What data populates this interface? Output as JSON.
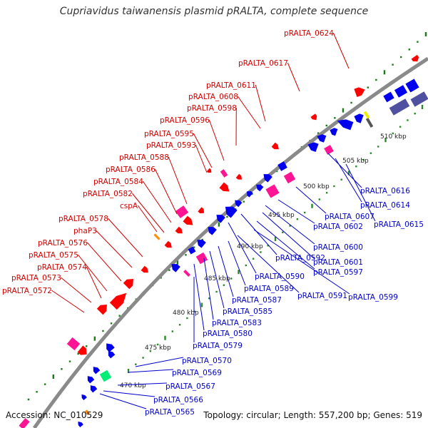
{
  "title": "Cupriavidus taiwanensis plasmid pRALTA, complete sequence",
  "footer": {
    "accession": "Accession: NC_010529",
    "topology": "Topology: circular; Length: 557,200 bp; Genes: 519"
  },
  "colors": {
    "backbone": "#8a8a8a",
    "dots": "#1a7a1a",
    "dots_minor": "#2a8a2a",
    "label_red": "#d00000",
    "label_blue": "#0000cc",
    "gene_red": "#ff0000",
    "gene_blue": "#0000ee",
    "gene_pink": "#ff1493",
    "gene_orange": "#ff8c00",
    "gene_green": "#00ee76",
    "gene_slate": "#5050a0",
    "gene_grey": "#555555"
  },
  "tick_labels": [
    "470 kbp",
    "475 kbp",
    "480 kbp",
    "485 kbp",
    "490 kbp",
    "495 kbp",
    "500 kbp",
    "505 kbp",
    "510 kbp"
  ],
  "red_labels": [
    "pRALTA_0624",
    "pRALTA_0617",
    "pRALTA_0611",
    "pRALTA_0608",
    "pRALTA_0598",
    "pRALTA_0596",
    "pRALTA_0595",
    "pRALTA_0593",
    "pRALTA_0588",
    "pRALTA_0586",
    "pRALTA_0584",
    "pRALTA_0582",
    "cspA",
    "pRALTA_0578",
    "phaP3",
    "pRALTA_0576",
    "pRALTA_0575",
    "pRALTA_0574",
    "pRALTA_0573",
    "pRALTA_0572"
  ],
  "blue_labels": [
    "pRALTA_0616",
    "pRALTA_0614",
    "pRALTA_0615",
    "pRALTA_0607",
    "pRALTA_0602",
    "pRALTA_0600",
    "pRALTA_0601",
    "pRALTA_0592",
    "pRALTA_0597",
    "pRALTA_0590",
    "pRALTA_0591",
    "pRALTA_0599",
    "pRALTA_0589",
    "pRALTA_0587",
    "pRALTA_0585",
    "pRALTA_0583",
    "pRALTA_0580",
    "pRALTA_0579",
    "pRALTA_0570",
    "pRALTA_0569",
    "pRALTA_0567",
    "pRALTA_0566",
    "pRALTA_0565"
  ]
}
